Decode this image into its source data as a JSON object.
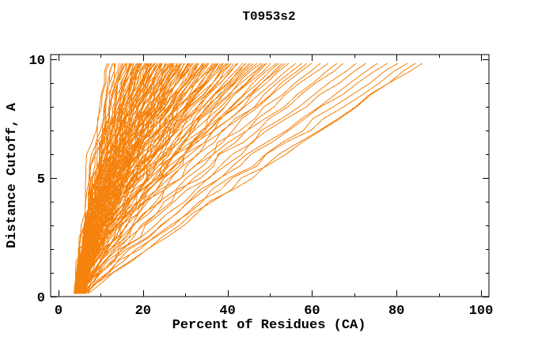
{
  "chart_data": {
    "type": "line",
    "title": "T0953s2",
    "xlabel": "Percent of Residues (CA)",
    "ylabel": "Distance Cutoff, A",
    "xlim": [
      0,
      100
    ],
    "ylim": [
      0,
      10
    ],
    "x_ticks": {
      "major": [
        0,
        20,
        40,
        60,
        80,
        100
      ],
      "minor": [
        10,
        30,
        50,
        70,
        90
      ]
    },
    "y_ticks": {
      "major": [
        0,
        5,
        10
      ],
      "minor": [
        1,
        2,
        3,
        4,
        6,
        7,
        8,
        9
      ]
    },
    "grid": false,
    "legend": "none",
    "frame_color": "#000000",
    "series_color": "#F5820D",
    "series_description": "Each orange curve is one predicted model: x = percent of CA residues superimposable within distance cutoff y. ~150 unlabeled curves fan from ~4-7% at cutoff 0 to 11-88% at cutoff ~9.8 A.",
    "curve_model": "x(y) = s + (e - s) * (y/10)^p, sampled every 0.5 A from 0.12 to 9.83",
    "cutoff_min": 0.12,
    "cutoff_max": 9.83,
    "cutoff_step": 0.5,
    "curves": [
      [
        4.0,
        11.5,
        1.45
      ],
      [
        4.5,
        12.2,
        1.5
      ],
      [
        3.8,
        12.8,
        1.4
      ],
      [
        5.0,
        13.5,
        1.5
      ],
      [
        4.2,
        14.0,
        1.45
      ],
      [
        4.8,
        14.5,
        1.38
      ],
      [
        4.0,
        14.8,
        1.5
      ],
      [
        5.2,
        13.0,
        1.42
      ],
      [
        4.0,
        15.2,
        1.45
      ],
      [
        4.6,
        15.6,
        1.5
      ],
      [
        5.0,
        16.0,
        1.4
      ],
      [
        3.8,
        16.3,
        1.48
      ],
      [
        4.3,
        16.6,
        1.42
      ],
      [
        5.4,
        17.0,
        1.5
      ],
      [
        4.1,
        17.3,
        1.45
      ],
      [
        4.8,
        17.6,
        1.38
      ],
      [
        5.1,
        17.9,
        1.5
      ],
      [
        3.9,
        18.2,
        1.44
      ],
      [
        4.5,
        18.5,
        1.5
      ],
      [
        5.6,
        18.8,
        1.4
      ],
      [
        4.2,
        19.1,
        1.47
      ],
      [
        4.9,
        19.4,
        1.42
      ],
      [
        5.3,
        19.7,
        1.5
      ],
      [
        4.0,
        19.9,
        1.45
      ],
      [
        4.4,
        15.9,
        1.52
      ],
      [
        5.0,
        16.8,
        1.46
      ],
      [
        4.7,
        17.8,
        1.5
      ],
      [
        4.3,
        18.7,
        1.43
      ],
      [
        5.5,
        19.3,
        1.48
      ],
      [
        4.6,
        19.8,
        1.52
      ],
      [
        4.0,
        20.2,
        1.45
      ],
      [
        4.7,
        20.5,
        1.5
      ],
      [
        5.2,
        20.8,
        1.42
      ],
      [
        3.9,
        21.1,
        1.48
      ],
      [
        4.4,
        21.4,
        1.44
      ],
      [
        5.0,
        21.7,
        1.5
      ],
      [
        5.6,
        22.0,
        1.4
      ],
      [
        4.2,
        22.3,
        1.46
      ],
      [
        4.8,
        22.6,
        1.5
      ],
      [
        5.3,
        22.9,
        1.43
      ],
      [
        4.0,
        23.2,
        1.48
      ],
      [
        4.5,
        23.5,
        1.45
      ],
      [
        5.1,
        23.8,
        1.5
      ],
      [
        5.7,
        24.1,
        1.4
      ],
      [
        4.3,
        24.4,
        1.47
      ],
      [
        4.9,
        24.7,
        1.44
      ],
      [
        5.4,
        25.0,
        1.5
      ],
      [
        4.1,
        20.9,
        1.52
      ],
      [
        4.6,
        21.9,
        1.46
      ],
      [
        5.2,
        22.8,
        1.5
      ],
      [
        4.4,
        23.7,
        1.42
      ],
      [
        5.0,
        24.6,
        1.48
      ],
      [
        4.7,
        24.9,
        1.52
      ],
      [
        5.5,
        21.5,
        1.44
      ],
      [
        4.2,
        23.0,
        1.5
      ],
      [
        4.1,
        25.3,
        1.45
      ],
      [
        4.8,
        25.7,
        1.5
      ],
      [
        5.3,
        26.1,
        1.42
      ],
      [
        4.0,
        26.5,
        1.48
      ],
      [
        4.5,
        26.9,
        1.44
      ],
      [
        5.1,
        27.3,
        1.5
      ],
      [
        5.7,
        27.7,
        1.4
      ],
      [
        4.3,
        28.1,
        1.46
      ],
      [
        4.9,
        28.5,
        1.5
      ],
      [
        5.4,
        28.9,
        1.43
      ],
      [
        4.1,
        29.3,
        1.48
      ],
      [
        4.6,
        29.7,
        1.45
      ],
      [
        5.2,
        29.9,
        1.5
      ],
      [
        5.8,
        26.3,
        1.4
      ],
      [
        4.4,
        27.0,
        1.47
      ],
      [
        5.0,
        27.9,
        1.44
      ],
      [
        5.5,
        28.7,
        1.5
      ],
      [
        4.2,
        29.5,
        1.52
      ],
      [
        4.7,
        25.9,
        1.46
      ],
      [
        5.3,
        27.5,
        1.5
      ],
      [
        4.5,
        28.3,
        1.42
      ],
      [
        5.1,
        29.1,
        1.48
      ],
      [
        4.2,
        30.3,
        1.44
      ],
      [
        4.9,
        30.8,
        1.5
      ],
      [
        5.4,
        31.3,
        1.4
      ],
      [
        4.1,
        31.8,
        1.46
      ],
      [
        4.6,
        32.3,
        1.43
      ],
      [
        5.2,
        32.8,
        1.5
      ],
      [
        5.8,
        33.3,
        1.38
      ],
      [
        4.4,
        33.8,
        1.45
      ],
      [
        5.0,
        34.3,
        1.5
      ],
      [
        5.5,
        34.8,
        1.42
      ],
      [
        4.2,
        30.6,
        1.48
      ],
      [
        4.7,
        31.6,
        1.44
      ],
      [
        5.3,
        32.6,
        1.5
      ],
      [
        4.5,
        33.6,
        1.4
      ],
      [
        5.1,
        34.6,
        1.47
      ],
      [
        5.6,
        31.0,
        1.43
      ],
      [
        4.3,
        32.0,
        1.5
      ],
      [
        4.8,
        34.0,
        1.45
      ],
      [
        4.3,
        35.3,
        1.42
      ],
      [
        5.0,
        35.9,
        1.48
      ],
      [
        5.5,
        36.5,
        1.38
      ],
      [
        4.2,
        37.1,
        1.45
      ],
      [
        4.7,
        37.7,
        1.4
      ],
      [
        5.3,
        38.3,
        1.47
      ],
      [
        5.9,
        38.9,
        1.36
      ],
      [
        4.5,
        39.5,
        1.44
      ],
      [
        5.1,
        39.9,
        1.48
      ],
      [
        5.6,
        36.1,
        1.4
      ],
      [
        4.4,
        37.4,
        1.46
      ],
      [
        4.9,
        38.6,
        1.42
      ],
      [
        5.4,
        35.6,
        1.48
      ],
      [
        4.6,
        39.2,
        1.38
      ],
      [
        4.4,
        40.4,
        1.4
      ],
      [
        5.1,
        41.2,
        1.45
      ],
      [
        5.6,
        42.0,
        1.35
      ],
      [
        4.3,
        42.8,
        1.42
      ],
      [
        4.8,
        43.6,
        1.38
      ],
      [
        5.4,
        44.4,
        1.44
      ],
      [
        6.0,
        44.9,
        1.32
      ],
      [
        4.6,
        41.6,
        1.4
      ],
      [
        5.2,
        43.2,
        1.36
      ],
      [
        5.7,
        40.8,
        1.42
      ],
      [
        4.5,
        45.5,
        1.38
      ],
      [
        5.2,
        46.3,
        1.42
      ],
      [
        5.7,
        47.1,
        1.32
      ],
      [
        4.4,
        47.9,
        1.4
      ],
      [
        4.9,
        48.7,
        1.35
      ],
      [
        5.5,
        49.5,
        1.4
      ],
      [
        6.1,
        49.9,
        1.3
      ],
      [
        4.7,
        46.7,
        1.36
      ],
      [
        4.6,
        50.6,
        1.35
      ],
      [
        5.3,
        51.5,
        1.38
      ],
      [
        5.8,
        52.4,
        1.3
      ],
      [
        4.5,
        53.3,
        1.36
      ],
      [
        5.0,
        54.2,
        1.32
      ],
      [
        5.6,
        54.9,
        1.38
      ],
      [
        4.7,
        55.8,
        1.3
      ],
      [
        5.4,
        57.2,
        1.33
      ],
      [
        5.9,
        58.6,
        1.26
      ],
      [
        4.6,
        60.0,
        1.3
      ],
      [
        5.1,
        61.4,
        1.28
      ],
      [
        4.8,
        63.0,
        1.24
      ],
      [
        5.5,
        65.0,
        1.26
      ],
      [
        6.0,
        67.0,
        1.2
      ],
      [
        4.7,
        69.0,
        1.22
      ],
      [
        4.9,
        71.5,
        1.16
      ],
      [
        5.6,
        74.0,
        1.18
      ],
      [
        6.1,
        76.5,
        1.12
      ],
      [
        4.8,
        79.0,
        1.14
      ],
      [
        5.0,
        81.5,
        1.08
      ],
      [
        5.7,
        84.0,
        1.1
      ],
      [
        6.2,
        86.0,
        1.04
      ],
      [
        5.2,
        87.5,
        1.06
      ]
    ]
  }
}
